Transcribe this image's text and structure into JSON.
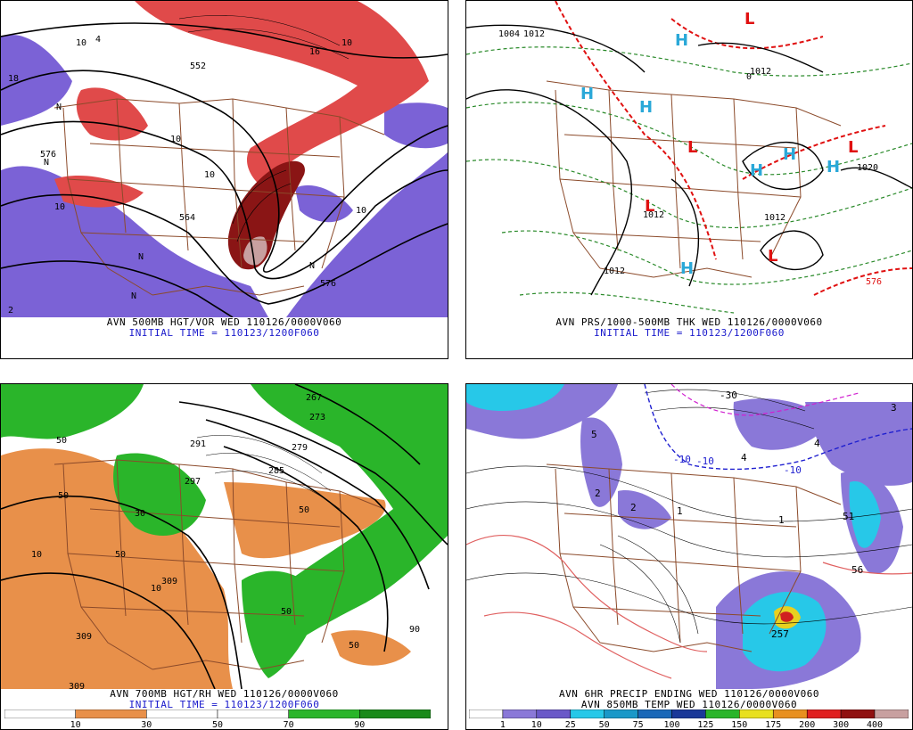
{
  "panels": [
    {
      "id": "top-left",
      "caption_line1": "AVN 500MB HGT/VOR WED 110126/0000V060",
      "caption_line2": "INITIAL TIME = 110123/1200F060",
      "map_labels": [
        "576",
        "564",
        "576",
        "10",
        "10",
        "N",
        "N",
        "N",
        "N",
        "N",
        "10",
        "16",
        "10",
        "10",
        "552",
        "2",
        "18",
        "10",
        "4"
      ]
    },
    {
      "id": "top-right",
      "caption_line1": "AVN PRS/1000-500MB THK WED 110126/0000V060",
      "caption_line2": "INITIAL TIME = 110123/1200F060",
      "map_labels": [
        "1004",
        "1012",
        "1012",
        "1012",
        "1012",
        "1012",
        "1020",
        "576",
        "0"
      ],
      "highs": [
        "H",
        "H",
        "H",
        "H",
        "H",
        "H",
        "H"
      ],
      "lows": [
        "L",
        "L",
        "L",
        "L",
        "L"
      ]
    },
    {
      "id": "bottom-left",
      "caption_line1": "AVN 700MB HGT/RH WED 110126/0000V060",
      "caption_line2": "INITIAL TIME = 110123/1200F060",
      "map_labels": [
        "309",
        "309",
        "309",
        "297",
        "279",
        "273",
        "267",
        "285",
        "291",
        "50",
        "10",
        "50",
        "10",
        "50",
        "50",
        "30",
        "90",
        "50",
        "50"
      ],
      "colorbar_labels": [
        "10",
        "30",
        "50",
        "70",
        "90"
      ]
    },
    {
      "id": "bottom-right",
      "caption_line1": "AVN 6HR PRECIP ENDING WED 110126/0000V060",
      "caption_line2": "AVN 850MB TEMP WED 110126/0000V060",
      "map_labels": [
        "-30",
        "-10",
        "-10",
        "51",
        "56",
        "257",
        "3",
        "4",
        "1",
        "2",
        "2",
        "1",
        "-10",
        "4",
        "5"
      ],
      "colorbar_labels": [
        "1",
        "10",
        "25",
        "50",
        "75",
        "100",
        "125",
        "150",
        "175",
        "200",
        "300",
        "400"
      ]
    }
  ],
  "colors": {
    "vort_red": "#e04a4a",
    "vort_dark": "#7a1010",
    "vort_purple": "#7b62d6",
    "state_lines": "#8b4a2a",
    "thk_red": "#e01010",
    "thk_green": "#2a8a2a",
    "high_blue": "#2aa8d8",
    "low_red": "#e01010",
    "rh_orange": "#e8904a",
    "rh_green": "#2ab52a",
    "precip_cyan": "#27c8e8",
    "precip_purple": "#8a78d8"
  }
}
